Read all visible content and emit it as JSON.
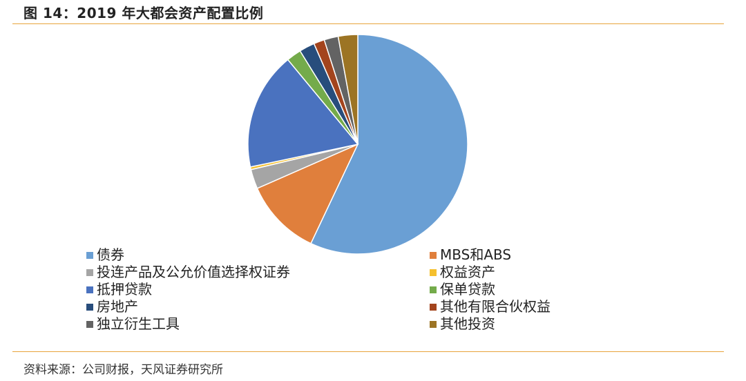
{
  "figure": {
    "title": "图 14：2019 年大都会资产配置比例",
    "source": "资料来源：公司财报，天风证券研究所"
  },
  "chart_data": {
    "type": "pie",
    "title": "",
    "start_angle_deg": 0,
    "direction": "clockwise",
    "legend_placement": "bottom",
    "slices": [
      {
        "label": "债券",
        "value": 57.6,
        "color": "#6a9fd4"
      },
      {
        "label": "MBS和ABS",
        "value": 11.5,
        "color": "#e07f3c"
      },
      {
        "label": "投连产品及公允价值选择权证券",
        "value": 2.9,
        "color": "#a5a5a5"
      },
      {
        "label": "权益资产",
        "value": 0.4,
        "color": "#f5c02e"
      },
      {
        "label": "抵押贷款",
        "value": 17.5,
        "color": "#4a72bf"
      },
      {
        "label": "保单贷款",
        "value": 2.2,
        "color": "#74ab4b"
      },
      {
        "label": "房地产",
        "value": 2.3,
        "color": "#284d7c"
      },
      {
        "label": "其他有限合伙权益",
        "value": 1.6,
        "color": "#a3441d"
      },
      {
        "label": "独立衍生工具",
        "value": 2.1,
        "color": "#636363"
      },
      {
        "label": "其他投资",
        "value": 2.9,
        "color": "#9c7424"
      }
    ]
  }
}
